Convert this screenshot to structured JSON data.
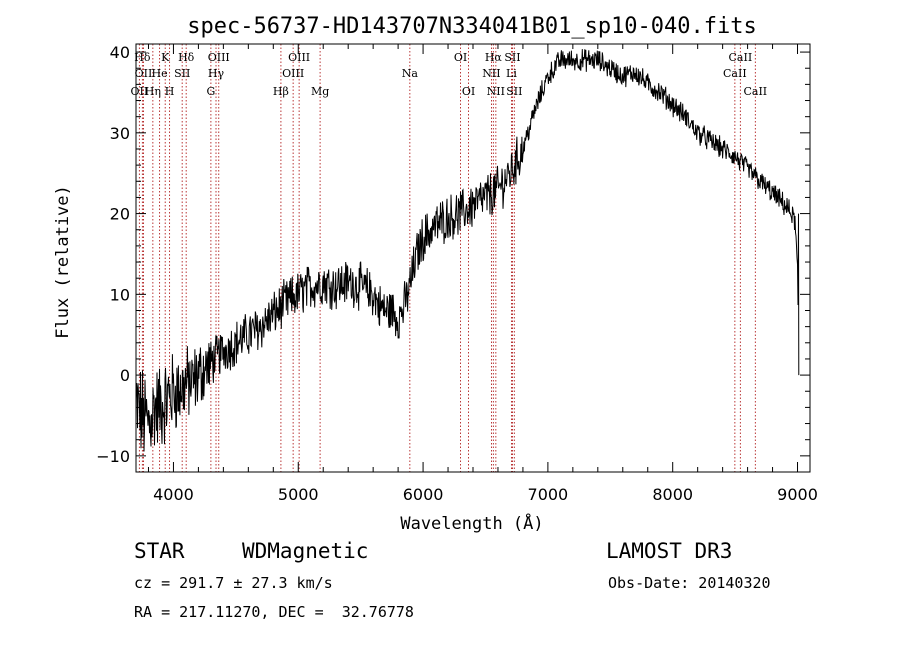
{
  "chart_data": {
    "type": "line",
    "title": "spec-56737-HD143707N334041B01_sp10-040.fits",
    "xlabel": "Wavelength (Å)",
    "ylabel": "Flux (relative)",
    "xlim": [
      3700,
      9100
    ],
    "ylim": [
      -12,
      41
    ],
    "xticks": [
      4000,
      5000,
      6000,
      7000,
      8000,
      9000
    ],
    "yticks": [
      -10,
      0,
      10,
      20,
      30,
      40
    ],
    "line_color": "#000000",
    "marker_color": "#b22222",
    "spectrum_anchors": [
      [
        3700,
        -4
      ],
      [
        3750,
        -5
      ],
      [
        3800,
        -6
      ],
      [
        3850,
        -4
      ],
      [
        3900,
        -4
      ],
      [
        3950,
        -3
      ],
      [
        4000,
        -2
      ],
      [
        4050,
        -2
      ],
      [
        4100,
        -1
      ],
      [
        4150,
        -1
      ],
      [
        4200,
        0
      ],
      [
        4300,
        1.5
      ],
      [
        4400,
        3
      ],
      [
        4500,
        4
      ],
      [
        4600,
        5
      ],
      [
        4700,
        6
      ],
      [
        4800,
        7.5
      ],
      [
        4900,
        9
      ],
      [
        5000,
        10
      ],
      [
        5100,
        11
      ],
      [
        5200,
        11.5
      ],
      [
        5300,
        11
      ],
      [
        5400,
        11.5
      ],
      [
        5500,
        11
      ],
      [
        5600,
        10
      ],
      [
        5650,
        8.5
      ],
      [
        5700,
        8
      ],
      [
        5750,
        8
      ],
      [
        5800,
        7
      ],
      [
        5850,
        8.5
      ],
      [
        5900,
        11.5
      ],
      [
        5950,
        15
      ],
      [
        6000,
        17
      ],
      [
        6100,
        18.5
      ],
      [
        6200,
        19.5
      ],
      [
        6300,
        20
      ],
      [
        6400,
        21
      ],
      [
        6500,
        22
      ],
      [
        6600,
        23
      ],
      [
        6700,
        25
      ],
      [
        6800,
        28
      ],
      [
        6900,
        33
      ],
      [
        7000,
        37
      ],
      [
        7100,
        39
      ],
      [
        7200,
        39
      ],
      [
        7300,
        39
      ],
      [
        7400,
        39
      ],
      [
        7500,
        38
      ],
      [
        7600,
        37
      ],
      [
        7700,
        37.5
      ],
      [
        7800,
        36
      ],
      [
        7900,
        35
      ],
      [
        8000,
        33.5
      ],
      [
        8100,
        32
      ],
      [
        8200,
        30
      ],
      [
        8300,
        29
      ],
      [
        8400,
        28
      ],
      [
        8500,
        27
      ],
      [
        8600,
        25.5
      ],
      [
        8700,
        24
      ],
      [
        8800,
        22.5
      ],
      [
        8900,
        21
      ],
      [
        8950,
        20
      ],
      [
        8980,
        19
      ],
      [
        9000,
        13
      ],
      [
        9010,
        0
      ]
    ],
    "noise": {
      "blue_end": 5.5,
      "mid": 1.6,
      "red": 1.2
    },
    "lines": [
      {
        "label": "OII",
        "wl": 3727,
        "row": 3
      },
      {
        "label": "Hδ",
        "wl": 3751,
        "row": 1
      },
      {
        "label": "OII",
        "wl": 3760,
        "row": 2
      },
      {
        "label": "Hη",
        "wl": 3835,
        "row": 3
      },
      {
        "label": "He",
        "wl": 3889,
        "row": 2
      },
      {
        "label": "K",
        "wl": 3934,
        "row": 1
      },
      {
        "label": "H",
        "wl": 3969,
        "row": 3
      },
      {
        "label": "SII",
        "wl": 4070,
        "row": 2
      },
      {
        "label": "Hδ",
        "wl": 4102,
        "row": 1
      },
      {
        "label": "G",
        "wl": 4300,
        "row": 3
      },
      {
        "label": "Hγ",
        "wl": 4341,
        "row": 2
      },
      {
        "label": "OIII",
        "wl": 4363,
        "row": 1
      },
      {
        "label": "Hβ",
        "wl": 4861,
        "row": 3
      },
      {
        "label": "OIII",
        "wl": 4959,
        "row": 2
      },
      {
        "label": "OIII",
        "wl": 5007,
        "row": 1
      },
      {
        "label": "Mg",
        "wl": 5175,
        "row": 3
      },
      {
        "label": "Na",
        "wl": 5894,
        "row": 2
      },
      {
        "label": "OI",
        "wl": 6300,
        "row": 1
      },
      {
        "label": "OI",
        "wl": 6364,
        "row": 3
      },
      {
        "label": "NII",
        "wl": 6548,
        "row": 2
      },
      {
        "label": "Hα",
        "wl": 6563,
        "row": 1
      },
      {
        "label": "NII",
        "wl": 6583,
        "row": 3
      },
      {
        "label": "Li",
        "wl": 6708,
        "row": 2
      },
      {
        "label": "SII",
        "wl": 6716,
        "row": 1
      },
      {
        "label": "SII",
        "wl": 6731,
        "row": 3
      },
      {
        "label": "CaII",
        "wl": 8498,
        "row": 2
      },
      {
        "label": "CaII",
        "wl": 8542,
        "row": 1
      },
      {
        "label": "CaII",
        "wl": 8662,
        "row": 3
      }
    ]
  },
  "info": {
    "class_label": "STAR",
    "subclass_label": "WDMagnetic",
    "survey_label": "LAMOST DR3",
    "cz_text": "cz = 291.7 ± 27.3 km/s",
    "obs_date_text": "Obs-Date: 20140320",
    "coords_text": "RA = 217.11270, DEC =  32.76778"
  }
}
